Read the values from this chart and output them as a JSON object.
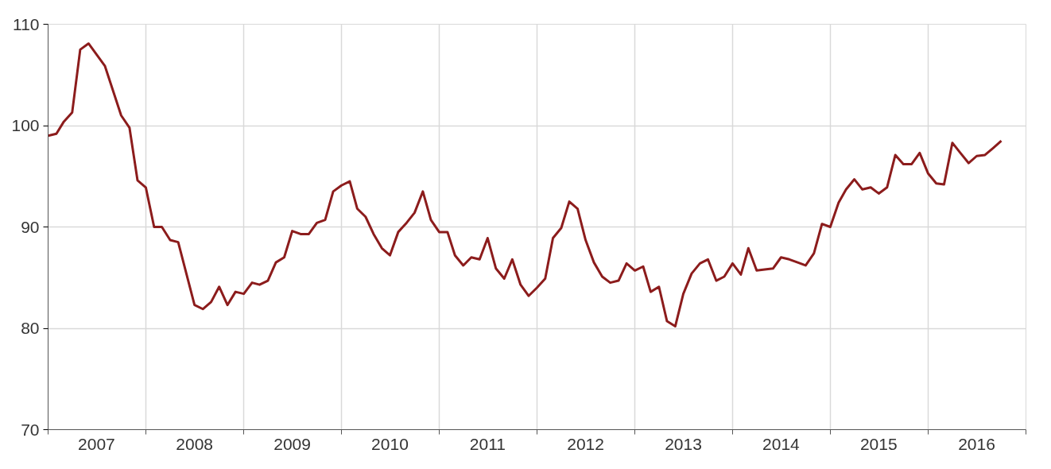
{
  "chart_data": {
    "type": "line",
    "x": [
      "2007-01",
      "2007-02",
      "2007-03",
      "2007-04",
      "2007-05",
      "2007-06",
      "2007-08",
      "2007-10",
      "2007-11",
      "2007-12",
      "2008-01",
      "2008-02",
      "2008-03",
      "2008-04",
      "2008-05",
      "2008-07",
      "2008-08",
      "2008-09",
      "2008-10",
      "2008-11",
      "2008-12",
      "2009-01",
      "2009-02",
      "2009-03",
      "2009-04",
      "2009-05",
      "2009-06",
      "2009-07",
      "2009-08",
      "2009-09",
      "2009-10",
      "2009-11",
      "2009-12",
      "2010-01",
      "2010-02",
      "2010-03",
      "2010-04",
      "2010-05",
      "2010-06",
      "2010-07",
      "2010-08",
      "2010-09",
      "2010-10",
      "2010-11",
      "2010-12",
      "2011-01",
      "2011-02",
      "2011-03",
      "2011-04",
      "2011-05",
      "2011-06",
      "2011-07",
      "2011-08",
      "2011-09",
      "2011-10",
      "2011-11",
      "2011-12",
      "2012-01",
      "2012-02",
      "2012-03",
      "2012-04",
      "2012-05",
      "2012-06",
      "2012-07",
      "2012-08",
      "2012-09",
      "2012-10",
      "2012-11",
      "2012-12",
      "2013-01",
      "2013-02",
      "2013-03",
      "2013-04",
      "2013-05",
      "2013-06",
      "2013-07",
      "2013-08",
      "2013-09",
      "2013-10",
      "2013-11",
      "2013-12",
      "2014-01",
      "2014-02",
      "2014-03",
      "2014-04",
      "2014-05",
      "2014-06",
      "2014-07",
      "2014-08",
      "2014-09",
      "2014-10",
      "2014-11",
      "2014-12",
      "2015-01",
      "2015-02",
      "2015-03",
      "2015-04",
      "2015-05",
      "2015-06",
      "2015-07",
      "2015-08",
      "2015-09",
      "2015-10",
      "2015-11",
      "2015-12",
      "2016-01",
      "2016-02",
      "2016-03",
      "2016-04",
      "2016-05",
      "2016-06",
      "2016-07",
      "2016-08",
      "2016-09",
      "2016-10"
    ],
    "series": [
      {
        "color": "#8c1c1c",
        "values": [
          99.0,
          99.2,
          100.4,
          101.3,
          107.5,
          108.1,
          105.9,
          101.0,
          99.8,
          94.6,
          93.9,
          90.0,
          90.0,
          88.7,
          88.5,
          82.3,
          81.9,
          82.6,
          84.1,
          82.3,
          83.6,
          83.4,
          84.5,
          84.3,
          84.7,
          86.5,
          87.0,
          89.6,
          89.3,
          89.3,
          90.4,
          90.7,
          93.5,
          94.1,
          94.5,
          91.8,
          91.0,
          89.3,
          87.9,
          87.2,
          89.5,
          90.4,
          91.4,
          93.5,
          90.7,
          89.5,
          89.5,
          87.2,
          86.2,
          87.0,
          86.8,
          88.9,
          85.9,
          84.9,
          86.8,
          84.3,
          83.2,
          84.0,
          84.9,
          88.9,
          89.9,
          92.5,
          91.8,
          88.7,
          86.5,
          85.1,
          84.5,
          84.7,
          86.4,
          85.7,
          86.1,
          83.6,
          84.1,
          80.7,
          80.2,
          83.4,
          85.4,
          86.4,
          86.8,
          84.7,
          85.1,
          86.4,
          85.3,
          87.9,
          85.7,
          85.8,
          85.9,
          87.0,
          86.8,
          86.5,
          86.2,
          87.4,
          90.3,
          90.0,
          92.4,
          93.7,
          94.7,
          93.7,
          93.9,
          93.3,
          93.9,
          97.1,
          96.2,
          96.2,
          97.3,
          95.3,
          94.3,
          94.2,
          98.3,
          97.3,
          96.3,
          97.0,
          97.1,
          97.8,
          98.5
        ]
      }
    ],
    "xlim": [
      "2007-01",
      "2017-01"
    ],
    "xticks": [
      {
        "value": "2007-01",
        "label": null
      },
      {
        "value": "2007-07",
        "label": "2007"
      },
      {
        "value": "2008-01",
        "label": null
      },
      {
        "value": "2008-07",
        "label": "2008"
      },
      {
        "value": "2009-01",
        "label": null
      },
      {
        "value": "2009-07",
        "label": "2009"
      },
      {
        "value": "2010-01",
        "label": null
      },
      {
        "value": "2010-07",
        "label": "2010"
      },
      {
        "value": "2011-01",
        "label": null
      },
      {
        "value": "2011-07",
        "label": "2011"
      },
      {
        "value": "2012-01",
        "label": null
      },
      {
        "value": "2012-07",
        "label": "2012"
      },
      {
        "value": "2013-01",
        "label": null
      },
      {
        "value": "2013-07",
        "label": "2013"
      },
      {
        "value": "2014-01",
        "label": null
      },
      {
        "value": "2014-07",
        "label": "2014"
      },
      {
        "value": "2015-01",
        "label": null
      },
      {
        "value": "2015-07",
        "label": "2015"
      },
      {
        "value": "2016-01",
        "label": null
      },
      {
        "value": "2016-07",
        "label": "2016"
      },
      {
        "value": "2017-01",
        "label": null
      }
    ],
    "ylim": [
      70,
      110
    ],
    "yticks": [
      70,
      80,
      90,
      100,
      110
    ],
    "grid": true,
    "marker": "none",
    "line_style": "solid"
  }
}
